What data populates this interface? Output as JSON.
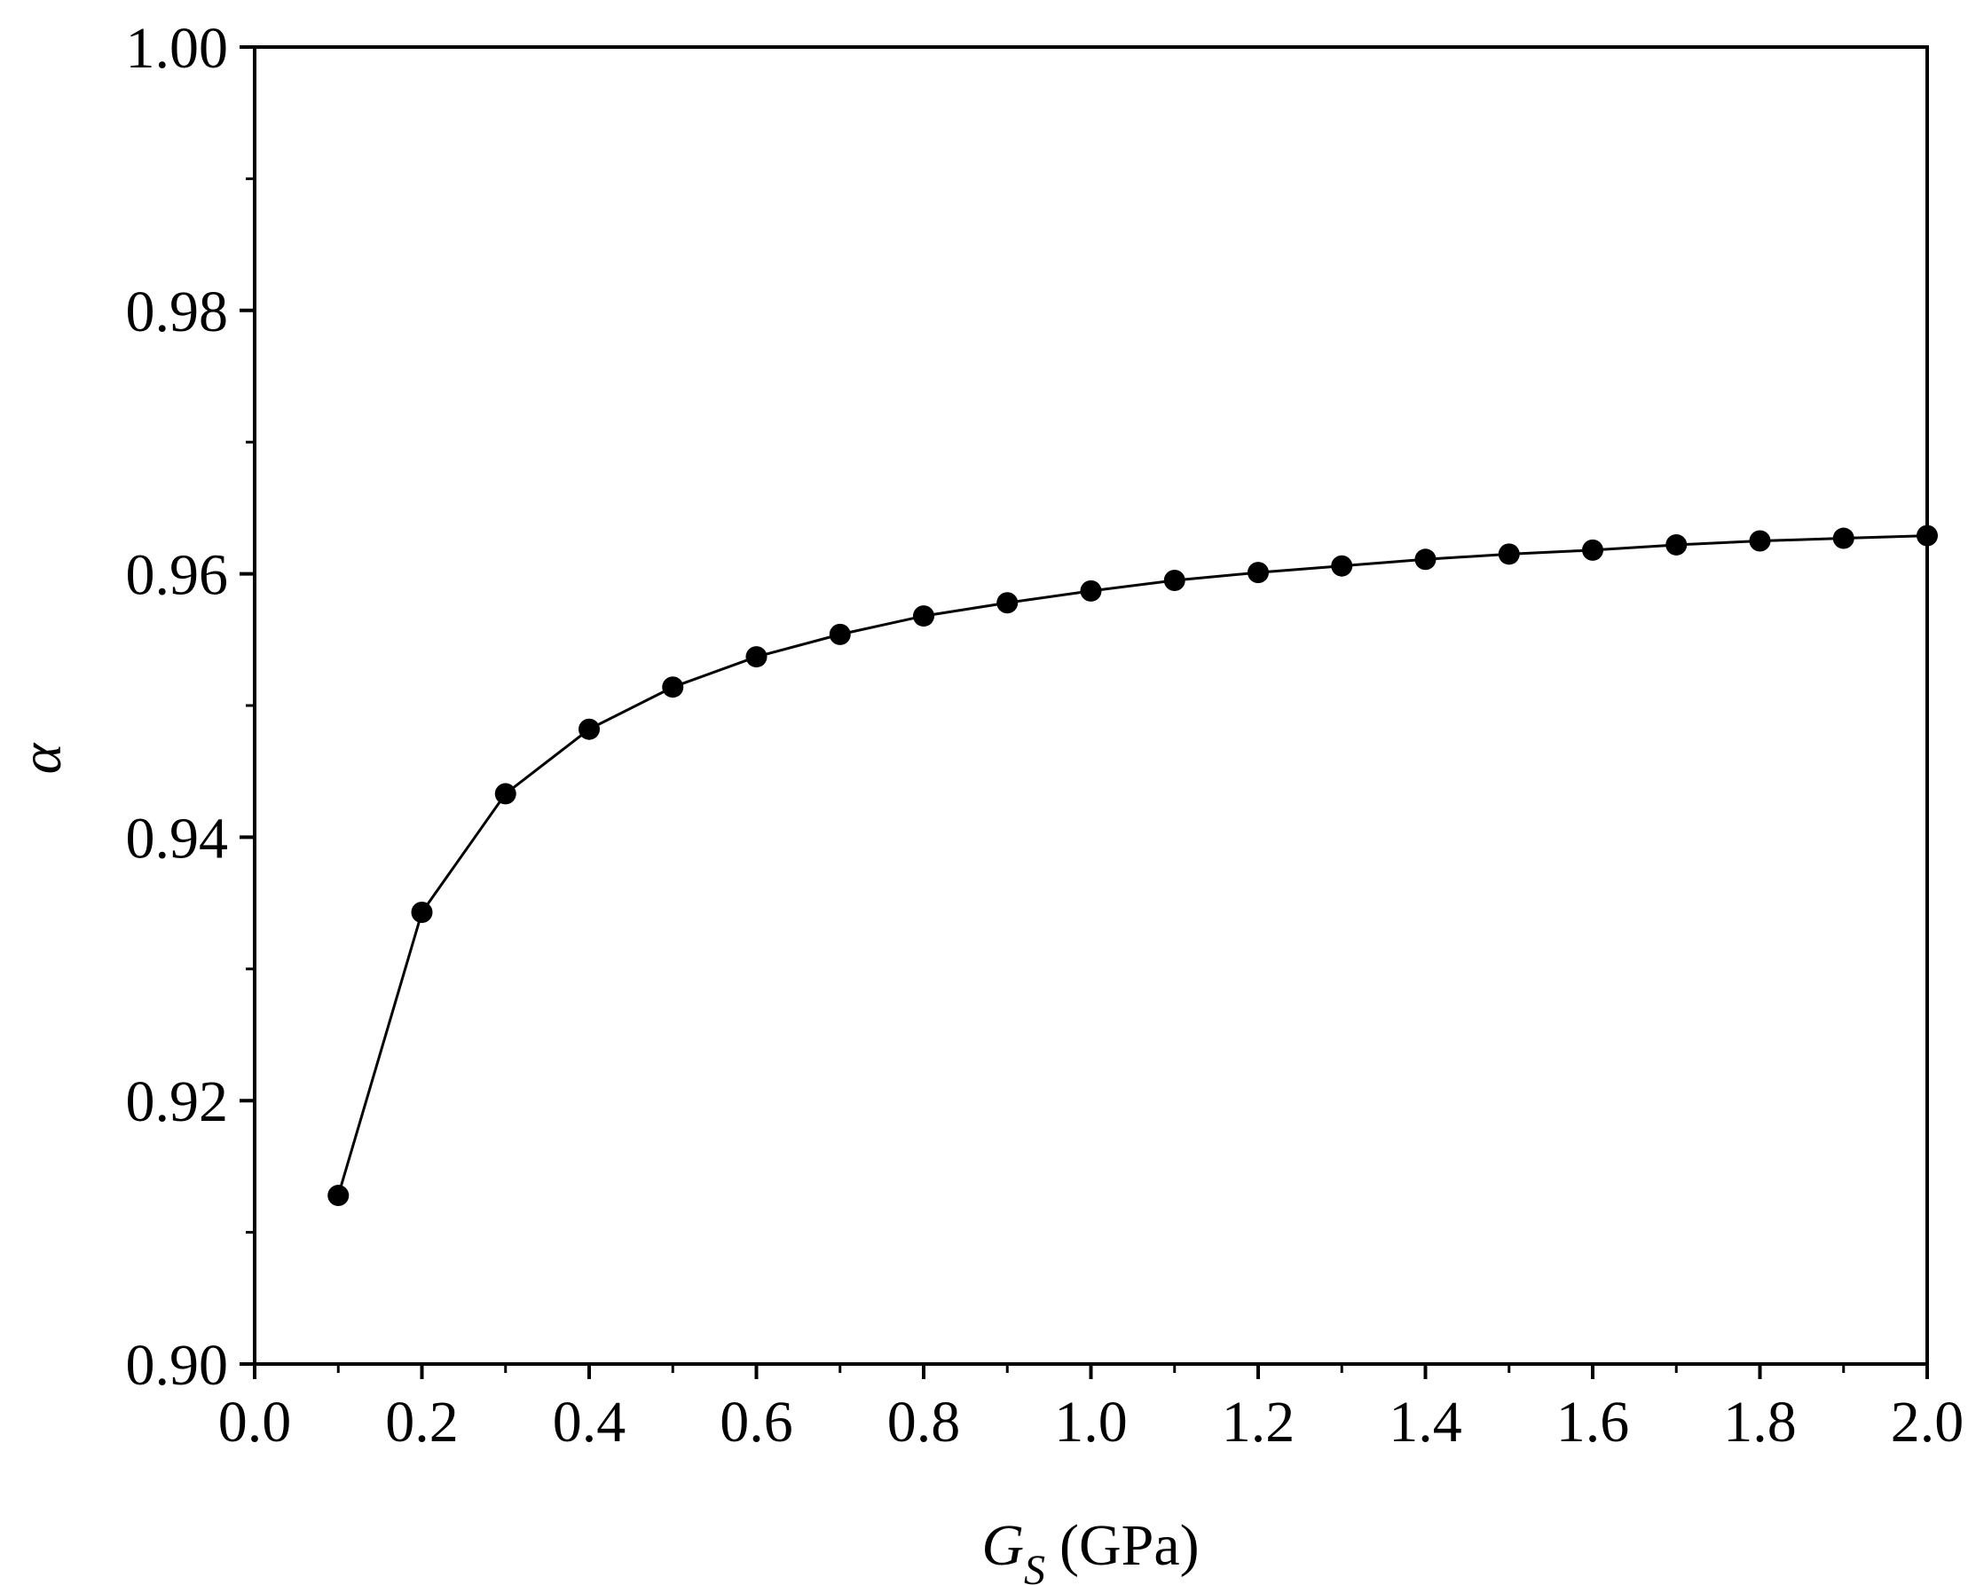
{
  "chart_data": {
    "type": "line",
    "title": "",
    "xlabel": {
      "symbol": "G",
      "subscript": "S",
      "unit": "(GPa)"
    },
    "ylabel": "α",
    "xlim": [
      0.0,
      2.0
    ],
    "ylim": [
      0.9,
      1.0
    ],
    "x_ticks": [
      "0.0",
      "0.2",
      "0.4",
      "0.6",
      "0.8",
      "1.0",
      "1.2",
      "1.4",
      "1.6",
      "1.8",
      "2.0"
    ],
    "y_ticks": [
      "0.90",
      "0.92",
      "0.94",
      "0.96",
      "0.98",
      "1.00"
    ],
    "grid": false,
    "legend": "none",
    "marker": "filled-circle",
    "line_color": "#000000",
    "series": [
      {
        "x": [
          0.1,
          0.2,
          0.3,
          0.4,
          0.5,
          0.6,
          0.7,
          0.8,
          0.9,
          1.0,
          1.1,
          1.2,
          1.3,
          1.4,
          1.5,
          1.6,
          1.7,
          1.8,
          1.9,
          2.0
        ],
        "y": [
          0.9128,
          0.9343,
          0.9433,
          0.9482,
          0.9514,
          0.9537,
          0.9554,
          0.9568,
          0.9578,
          0.9587,
          0.9595,
          0.9601,
          0.9606,
          0.9611,
          0.9615,
          0.9618,
          0.9622,
          0.9625,
          0.9627,
          0.9629
        ]
      }
    ]
  }
}
